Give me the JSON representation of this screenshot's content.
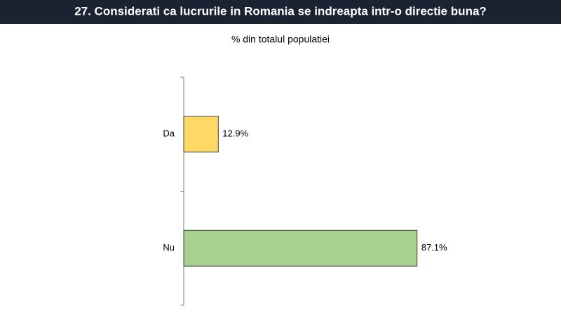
{
  "chart_data": {
    "type": "hbar",
    "title": "27. Considerati ca lucrurile in Romania se indreapta intr-o directie buna?",
    "subtitle": "% din totalul populatiei",
    "categories": [
      "Da",
      "Nu"
    ],
    "values": [
      12.9,
      87.1
    ],
    "value_labels": [
      "12.9%",
      "87.1%"
    ],
    "colors": [
      "#ffd966",
      "#a9d18e"
    ],
    "xlim": [
      0,
      100
    ]
  }
}
